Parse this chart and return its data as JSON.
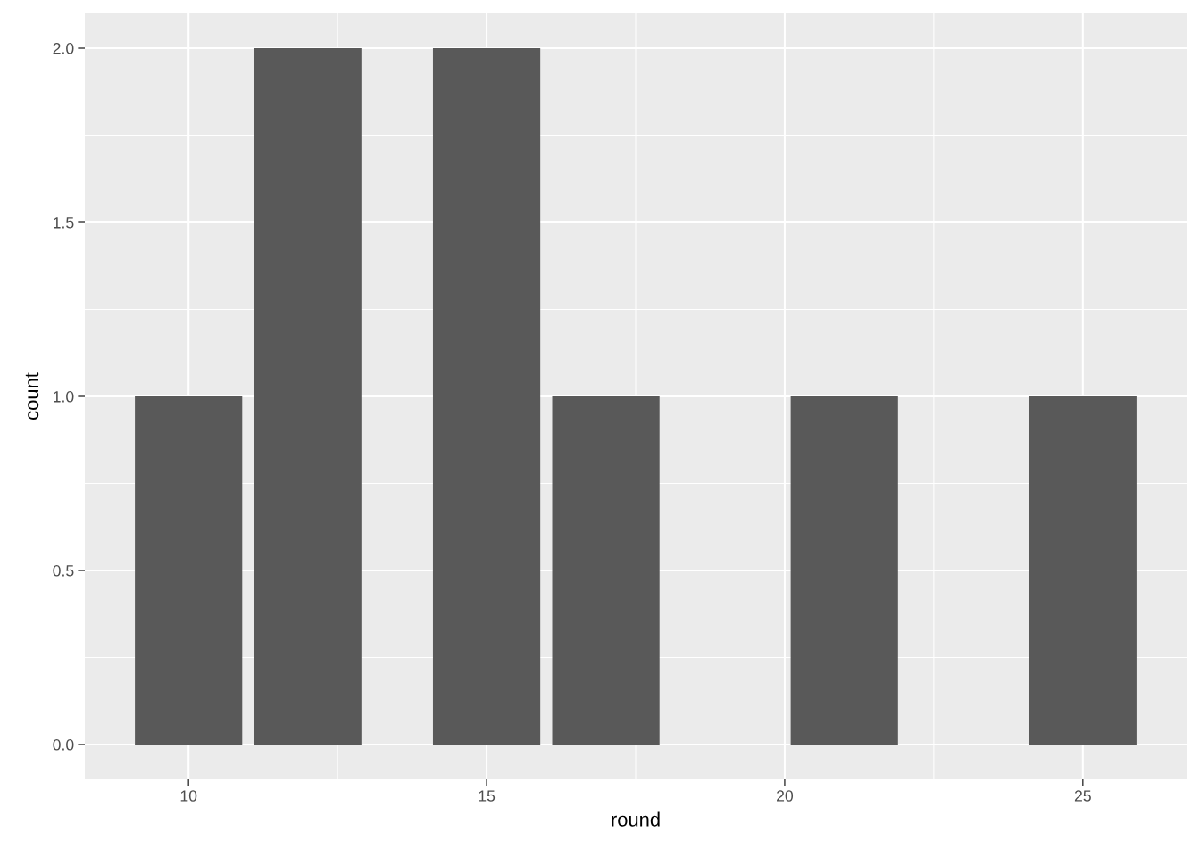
{
  "chart_data": {
    "type": "bar",
    "xlabel": "round",
    "ylabel": "count",
    "x": [
      10,
      12,
      15,
      17,
      21,
      25
    ],
    "values": [
      1,
      2,
      2,
      1,
      1,
      1
    ],
    "color": "#595959",
    "xlim": [
      8.26,
      26.74
    ],
    "xticks": [
      10,
      15,
      20,
      25
    ],
    "ylim": [
      -0.1,
      2.1
    ],
    "yticks": [
      {
        "value": 0,
        "label": "0.0"
      },
      {
        "value": 0.5,
        "label": "0.5"
      },
      {
        "value": 1,
        "label": "1.0"
      },
      {
        "value": 1.5,
        "label": "1.5"
      },
      {
        "value": 2,
        "label": "2.0"
      }
    ],
    "grid": true
  }
}
